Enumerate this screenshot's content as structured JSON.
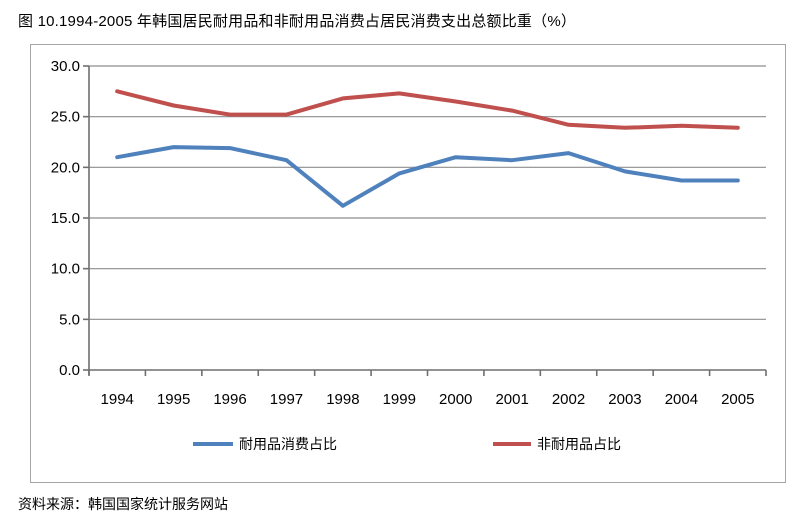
{
  "title": "图 10.1994-2005 年韩国居民耐用品和非耐用品消费占居民消费支出总额比重（%）",
  "source": "资料来源：韩国国家统计服务网站",
  "chart_data": {
    "type": "line",
    "title": "图 10.1994-2005 年韩国居民耐用品和非耐用品消费占居民消费支出总额比重（%）",
    "x": [
      1994,
      1995,
      1996,
      1997,
      1998,
      1999,
      2000,
      2001,
      2002,
      2003,
      2004,
      2005
    ],
    "series": [
      {
        "name": "耐用品消费占比",
        "color": "#4F81BD",
        "values": [
          21.0,
          22.0,
          21.9,
          20.7,
          16.2,
          19.4,
          21.0,
          20.7,
          21.4,
          19.6,
          18.7,
          18.7
        ]
      },
      {
        "name": "非耐用品占比",
        "color": "#C0504D",
        "values": [
          27.5,
          26.1,
          25.2,
          25.2,
          26.8,
          27.3,
          26.5,
          25.6,
          24.2,
          23.9,
          24.1,
          23.9
        ]
      }
    ],
    "xlabel": "",
    "ylabel": "",
    "ylim": [
      0,
      30
    ],
    "y_ticks": [
      0,
      5,
      10,
      15,
      20,
      25,
      30
    ],
    "y_tick_labels": [
      "0.0",
      "5.0",
      "10.0",
      "15.0",
      "20.0",
      "25.0",
      "30.0"
    ],
    "grid": true,
    "legend_position": "bottom",
    "gridline_color": "#8e8e8e",
    "axis_color": "#6f6f6f",
    "line_width": 4
  }
}
